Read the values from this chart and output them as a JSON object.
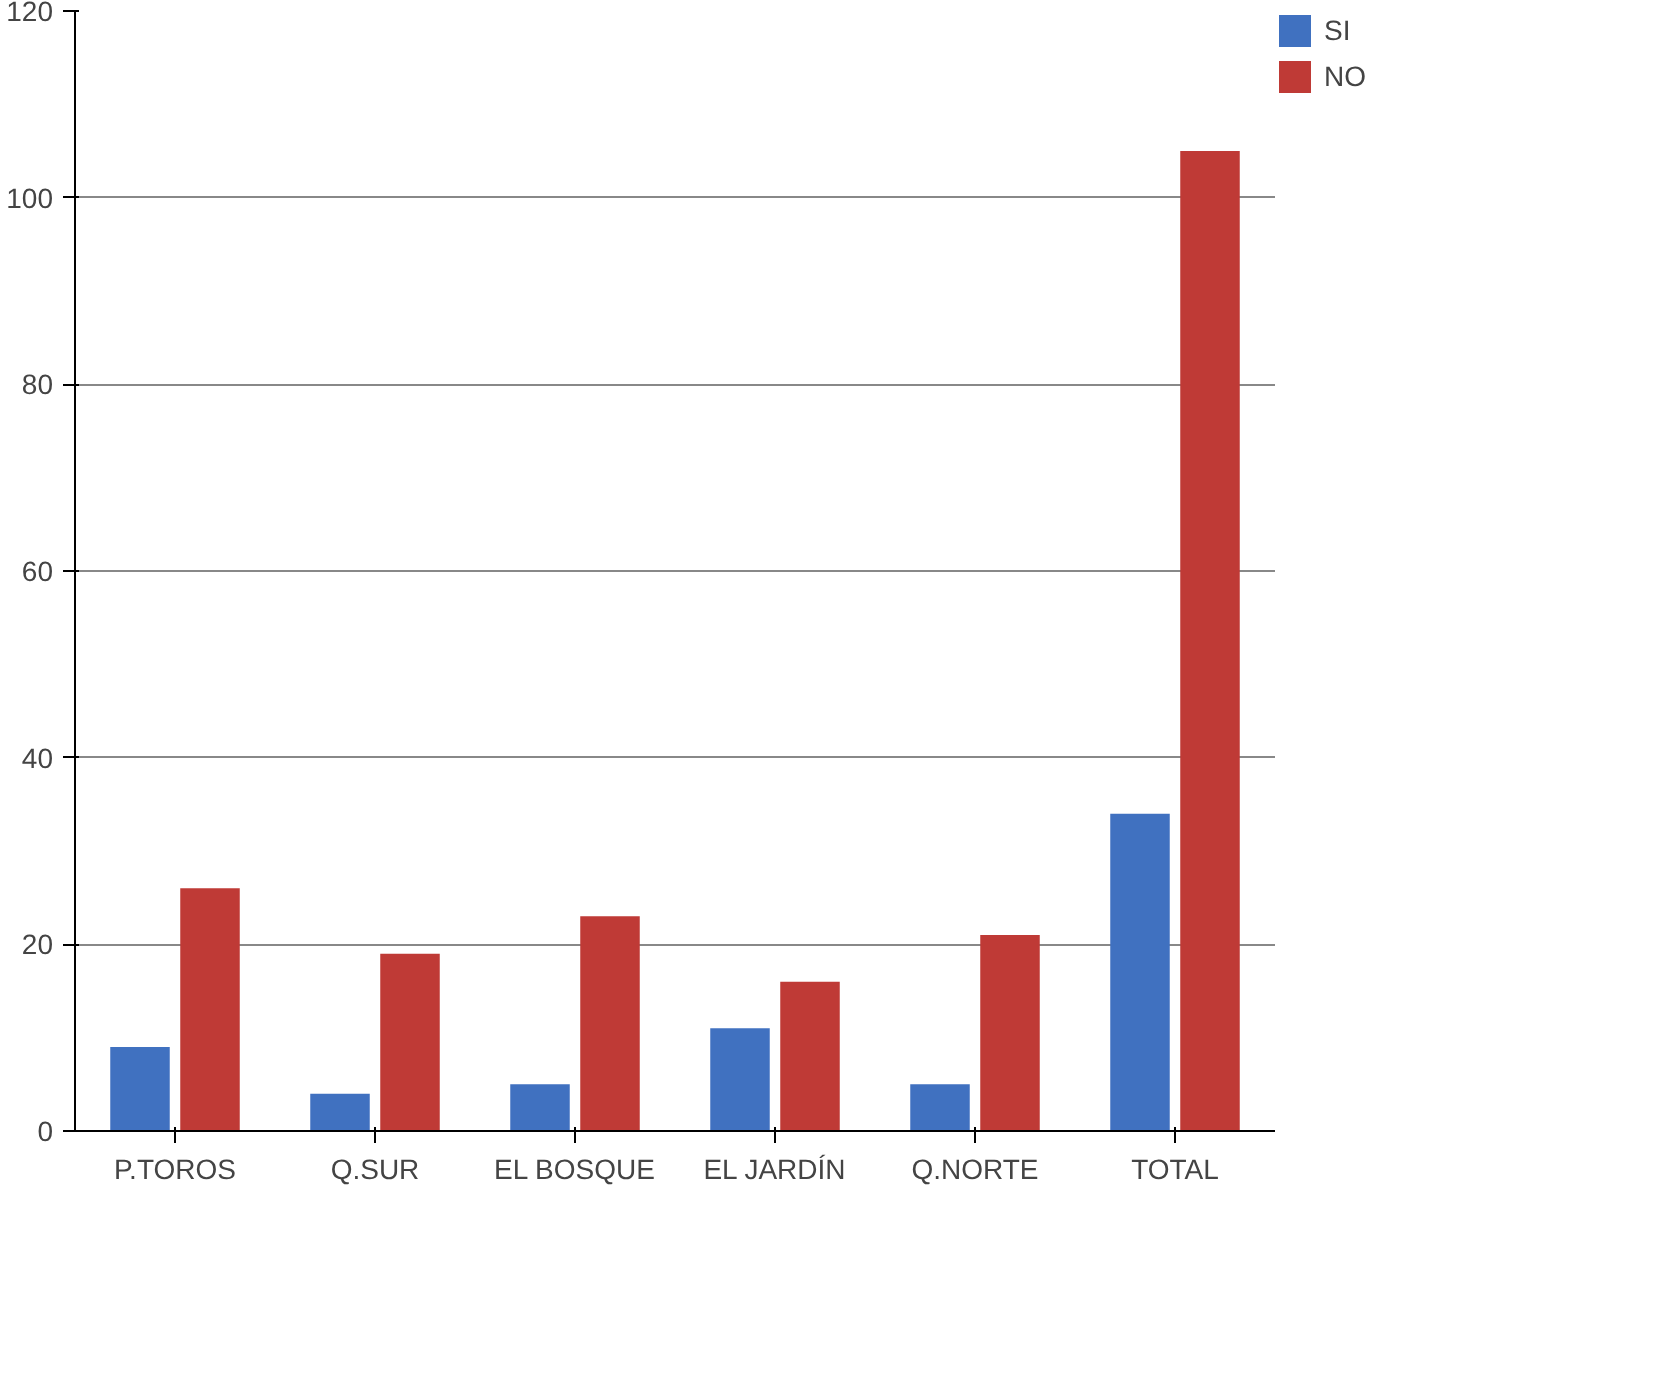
{
  "chart_data": {
    "type": "bar",
    "categories": [
      "P.TOROS",
      "Q.SUR",
      "EL BOSQUE",
      "EL JARDÍN",
      "Q.NORTE",
      "TOTAL"
    ],
    "series": [
      {
        "name": "SI",
        "color": "#4071c0",
        "values": [
          9,
          4,
          5,
          11,
          5,
          34
        ]
      },
      {
        "name": "NO",
        "color": "#bf3a36",
        "values": [
          26,
          19,
          23,
          16,
          21,
          105
        ]
      }
    ],
    "ylim": [
      0,
      120
    ],
    "yticks": [
      0,
      20,
      40,
      60,
      80,
      100,
      120
    ],
    "grid": "y",
    "legend": "right"
  }
}
